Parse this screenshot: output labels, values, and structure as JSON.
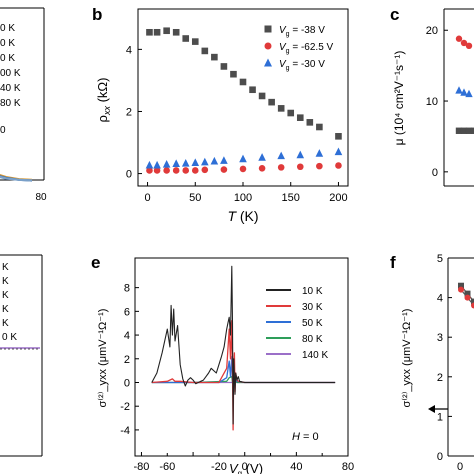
{
  "chart_data": [
    {
      "panel": "a",
      "type": "line",
      "visible": "cropped",
      "legend_entries": [
        "0 K",
        "0 K",
        "0 K",
        "00 K",
        "40 K",
        "80 K"
      ],
      "annotation": "0",
      "x_ticks": [
        "80"
      ],
      "series": [
        {
          "color": "#e09a2a",
          "x": [
            0,
            20,
            40,
            60,
            80
          ],
          "y": [
            0.3,
            0.22,
            0.16,
            0.13,
            0.12
          ]
        },
        {
          "color": "#3b6fb5",
          "x": [
            0,
            20,
            40,
            60,
            80
          ],
          "y": [
            0.27,
            0.2,
            0.15,
            0.12,
            0.11
          ]
        },
        {
          "color": "#7aa0c8",
          "x": [
            0,
            20,
            40,
            60,
            80
          ],
          "y": [
            0.25,
            0.19,
            0.14,
            0.12,
            0.11
          ]
        }
      ]
    },
    {
      "panel": "b",
      "type": "scatter",
      "xlabel": "T (K)",
      "ylabel": "ρ_xx (kΩ)",
      "xlim": [
        -10,
        210
      ],
      "ylim": [
        -0.4,
        5.3
      ],
      "x_ticks": [
        0,
        50,
        100,
        150,
        200
      ],
      "y_ticks": [
        0,
        2,
        4
      ],
      "series": [
        {
          "name": "V_g = -38 V",
          "marker": "square",
          "color": "#4d4d4d",
          "x": [
            2,
            10,
            20,
            30,
            40,
            50,
            60,
            70,
            80,
            90,
            100,
            110,
            120,
            130,
            140,
            150,
            160,
            170,
            180,
            200
          ],
          "y": [
            4.55,
            4.55,
            4.6,
            4.55,
            4.35,
            4.25,
            3.95,
            3.75,
            3.45,
            3.2,
            2.95,
            2.7,
            2.5,
            2.3,
            2.1,
            1.95,
            1.8,
            1.65,
            1.5,
            1.2
          ]
        },
        {
          "name": "V_g = -62.5 V",
          "marker": "circle",
          "color": "#e03a3a",
          "x": [
            2,
            10,
            20,
            30,
            40,
            50,
            60,
            80,
            100,
            120,
            140,
            160,
            180,
            200
          ],
          "y": [
            0.1,
            0.1,
            0.1,
            0.1,
            0.1,
            0.1,
            0.12,
            0.13,
            0.15,
            0.17,
            0.2,
            0.22,
            0.24,
            0.26
          ]
        },
        {
          "name": "V_g = -30 V",
          "marker": "triangle",
          "color": "#2e6fd6",
          "x": [
            2,
            10,
            20,
            30,
            40,
            50,
            60,
            70,
            80,
            100,
            120,
            140,
            160,
            180,
            200
          ],
          "y": [
            0.27,
            0.27,
            0.3,
            0.32,
            0.33,
            0.35,
            0.37,
            0.4,
            0.42,
            0.47,
            0.52,
            0.57,
            0.6,
            0.65,
            0.7
          ]
        }
      ]
    },
    {
      "panel": "c",
      "type": "scatter",
      "visible": "cropped",
      "ylabel": "μ (10⁴ cm²V⁻¹s⁻¹)",
      "ylim": [
        -2,
        23
      ],
      "y_ticks": [
        0,
        10,
        20
      ],
      "series": [
        {
          "marker": "circle",
          "color": "#e03a3a",
          "x": [
            1,
            2,
            3
          ],
          "y": [
            18.8,
            18.2,
            17.8
          ]
        },
        {
          "marker": "triangle",
          "color": "#2e6fd6",
          "x": [
            1,
            2,
            3
          ],
          "y": [
            11.5,
            11.2,
            11.0
          ]
        },
        {
          "marker": "square",
          "color": "#4d4d4d",
          "x": [
            1,
            2,
            3,
            4
          ],
          "y": [
            5.8,
            5.8,
            5.8,
            5.8
          ]
        }
      ]
    },
    {
      "panel": "d",
      "type": "line",
      "visible": "cropped",
      "legend_entries": [
        "K",
        "K",
        "K",
        "K",
        "K",
        "0 K"
      ],
      "series": [
        {
          "color": "#9b6fc8",
          "x": [
            0,
            10,
            20,
            30,
            40
          ],
          "y": [
            0,
            0,
            0,
            0,
            0
          ]
        }
      ]
    },
    {
      "panel": "e",
      "type": "line",
      "xlabel": "V_g (V)",
      "ylabel": "σ⁽²⁾_yxx (μmV⁻¹Ω⁻¹)",
      "xlim": [
        -85,
        80
      ],
      "ylim": [
        -6.2,
        10.5
      ],
      "x_ticks": [
        -80,
        -40,
        0,
        40,
        80
      ],
      "x_tick_labels": [
        "-80",
        "",
        "0",
        "40",
        "80"
      ],
      "x_minor_tick_labels": [
        "-60",
        "-20",
        "20",
        "60"
      ],
      "y_ticks": [
        -4,
        -2,
        0,
        2,
        4,
        6,
        8
      ],
      "annotation": "H = 0",
      "series": [
        {
          "name": "10 K",
          "color": "#222222",
          "x": [
            -72,
            -68,
            -64,
            -62,
            -60,
            -58,
            -57,
            -56,
            -55,
            -54,
            -52,
            -50,
            -48,
            -46,
            -44,
            -42,
            -40,
            -38,
            -36,
            -34,
            -32,
            -30,
            -28,
            -26,
            -24,
            -22,
            -20,
            -18,
            -16,
            -14,
            -13,
            -12,
            -11,
            -10,
            -9.5,
            -9,
            -8.5,
            -8,
            -7.5,
            -7,
            -6,
            -5,
            -4,
            0,
            20,
            40,
            60,
            70
          ],
          "y": [
            0,
            0.8,
            2.5,
            3.5,
            4.5,
            3.0,
            6.5,
            4.0,
            6.2,
            3.5,
            4.8,
            1.5,
            0.3,
            -0.3,
            0.2,
            0.4,
            0.2,
            -0.1,
            0.0,
            0.1,
            0.2,
            0.5,
            0.8,
            1.2,
            1.0,
            0.8,
            1.5,
            2.2,
            3.0,
            4.5,
            5.0,
            5.5,
            4.0,
            9.8,
            5.0,
            -3.5,
            2.0,
            0.5,
            -1.0,
            0.8,
            0.2,
            0.5,
            0.1,
            0,
            0,
            0,
            0,
            0
          ]
        },
        {
          "name": "30 K",
          "color": "#e03a3a",
          "x": [
            -72,
            -60,
            -56,
            -54,
            -50,
            -40,
            -20,
            -14,
            -12,
            -11,
            -10,
            -9.5,
            -9,
            -8.5,
            -8,
            -7.5,
            -7,
            -6,
            -5,
            0,
            20,
            40,
            60,
            70
          ],
          "y": [
            0,
            0.1,
            0.3,
            0.1,
            0.1,
            0,
            0,
            1.2,
            4.5,
            2.0,
            5.2,
            1.0,
            -4.0,
            1.5,
            2.5,
            -0.8,
            0.8,
            0.2,
            0.1,
            0,
            0,
            0,
            0,
            0
          ]
        },
        {
          "name": "50 K",
          "color": "#2e6fd6",
          "x": [
            -72,
            -60,
            -40,
            -20,
            -14,
            -12,
            -11,
            -10,
            -9.5,
            -9,
            -8.5,
            -8,
            -7.5,
            -7,
            -6,
            0,
            20,
            40,
            60,
            70
          ],
          "y": [
            0,
            0,
            0,
            0,
            0.4,
            1.8,
            0.5,
            2.2,
            0.3,
            -1.2,
            0.6,
            1.0,
            -0.2,
            0.4,
            0.1,
            0,
            0,
            0,
            0,
            0
          ]
        },
        {
          "name": "80 K",
          "color": "#2e9e5a",
          "x": [
            -72,
            -40,
            -14,
            -12,
            -10,
            -9,
            -8,
            -7,
            -6,
            0,
            70
          ],
          "y": [
            0,
            0,
            0.1,
            0.4,
            0.5,
            -0.4,
            0.4,
            0.2,
            0,
            0,
            0
          ]
        },
        {
          "name": "140 K",
          "color": "#9b6fc8",
          "x": [
            -72,
            -60,
            -40,
            -20,
            -10,
            0,
            20,
            40,
            60,
            70
          ],
          "y": [
            0,
            0,
            0,
            0,
            0,
            0,
            0,
            0,
            0,
            0
          ]
        }
      ]
    },
    {
      "panel": "f",
      "type": "line",
      "visible": "cropped",
      "ylabel": "σ⁽²⁾_yxx (μmV⁻¹Ω⁻¹)",
      "ylim": [
        0,
        5
      ],
      "y_ticks": [
        0,
        1,
        2,
        3,
        4,
        5
      ],
      "x_ticks": [
        0
      ],
      "series": [
        {
          "marker": "square",
          "color": "#4d4d4d",
          "x": [
            0,
            1,
            2
          ],
          "y": [
            4.3,
            4.1,
            3.9
          ]
        },
        {
          "marker": "circle",
          "color": "#e03a3a",
          "x": [
            0,
            1,
            2
          ],
          "y": [
            4.2,
            4.0,
            3.8
          ]
        }
      ]
    }
  ],
  "panel_labels": [
    "b",
    "c",
    "e",
    "f"
  ],
  "colors": {
    "black": "#222222",
    "red": "#e03a3a",
    "blue": "#2e6fd6",
    "green": "#2e9e5a",
    "purple": "#9b6fc8",
    "gray": "#4d4d4d"
  }
}
